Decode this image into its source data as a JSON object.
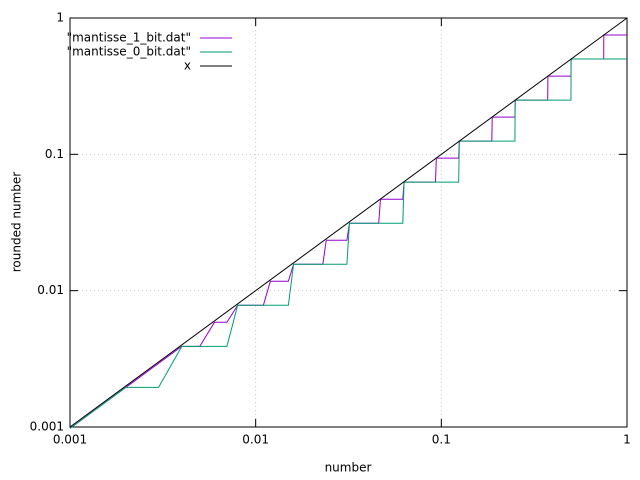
{
  "chart_data": {
    "type": "line",
    "xlabel": "number",
    "ylabel": "rounded number",
    "xlog": true,
    "ylog": true,
    "grid": true,
    "legend": "top-left",
    "xlim": [
      0.001,
      1
    ],
    "ylim": [
      0.001,
      1
    ],
    "xticks": [
      0.001,
      0.01,
      0.1,
      1
    ],
    "yticks": [
      0.001,
      0.01,
      0.1,
      1
    ],
    "series": [
      {
        "name": "\"mantisse_1_bit.dat\"",
        "color": "#9400d3",
        "x": [
          0.001,
          0.002,
          0.003,
          0.004,
          0.005,
          0.006,
          0.007,
          0.008,
          0.011,
          0.012,
          0.015,
          0.016,
          0.023,
          0.024,
          0.031,
          0.032,
          0.046,
          0.047,
          0.062,
          0.063,
          0.093,
          0.094,
          0.124,
          0.125,
          0.187,
          0.188,
          0.249,
          0.25,
          0.374,
          0.375,
          0.499,
          0.5,
          0.749,
          0.75,
          0.999
        ],
        "values": [
          0.000977,
          0.001953,
          0.00293,
          0.003906,
          0.003906,
          0.00586,
          0.00586,
          0.0078125,
          0.0078125,
          0.01172,
          0.01172,
          0.015625,
          0.015625,
          0.02344,
          0.02344,
          0.03125,
          0.03125,
          0.04688,
          0.04688,
          0.0625,
          0.0625,
          0.09375,
          0.09375,
          0.125,
          0.125,
          0.1875,
          0.1875,
          0.25,
          0.25,
          0.375,
          0.375,
          0.5,
          0.5,
          0.75,
          0.75
        ]
      },
      {
        "name": "\"mantisse_0_bit.dat\"",
        "color": "#009e73",
        "x": [
          0.001,
          0.002,
          0.003,
          0.004,
          0.007,
          0.008,
          0.015,
          0.016,
          0.031,
          0.032,
          0.062,
          0.063,
          0.124,
          0.125,
          0.249,
          0.25,
          0.499,
          0.5,
          0.999
        ],
        "values": [
          0.000977,
          0.001953,
          0.001953,
          0.003906,
          0.003906,
          0.0078125,
          0.0078125,
          0.015625,
          0.015625,
          0.03125,
          0.03125,
          0.0625,
          0.0625,
          0.125,
          0.125,
          0.25,
          0.25,
          0.5,
          0.5
        ]
      },
      {
        "name": "x",
        "color": "#000000",
        "x": [
          0.001,
          1
        ],
        "values": [
          0.001,
          1
        ]
      }
    ]
  }
}
